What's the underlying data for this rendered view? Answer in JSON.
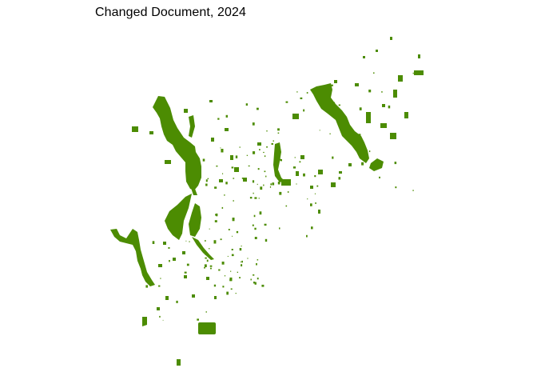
{
  "map": {
    "title": "Changed Document, 2024",
    "fill_color": "#4c8c02"
  }
}
